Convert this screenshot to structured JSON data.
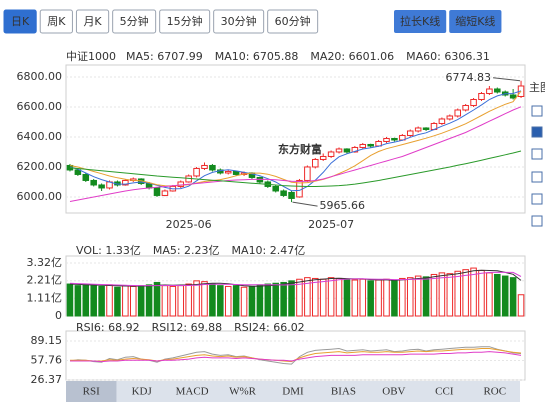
{
  "periods": [
    "日K",
    "周K",
    "月K",
    "5分钟",
    "15分钟",
    "30分钟",
    "60分钟"
  ],
  "buttons": [
    "拉长K线",
    "缩短K线"
  ],
  "side_label": "主图",
  "watermark": "东方财富",
  "indicator_tabs": [
    "RSI",
    "KDJ",
    "MACD",
    "W%R",
    "DMI",
    "BIAS",
    "OBV",
    "CCI",
    "ROC"
  ],
  "chart_data": [
    {
      "type": "candlestick",
      "title": "中证1000",
      "up_color": "#ee2a2a",
      "down_color": "#138a1e",
      "high_label": "6774.83",
      "low_label": "5965.66",
      "ylim": [
        5893,
        6880
      ],
      "yticks": [
        {
          "value": 6000,
          "label": "6000.00"
        },
        {
          "value": 6200,
          "label": "6200.00"
        },
        {
          "value": 6400,
          "label": "6400.00"
        },
        {
          "value": 6600,
          "label": "6600.00"
        },
        {
          "value": 6800,
          "label": "6800.00"
        }
      ],
      "grid": true,
      "categories": [
        null,
        null,
        null,
        null,
        null,
        null,
        null,
        null,
        null,
        null,
        null,
        null,
        null,
        null,
        null,
        "2025-06",
        null,
        null,
        null,
        null,
        null,
        null,
        null,
        null,
        null,
        null,
        null,
        null,
        null,
        null,
        null,
        null,
        null,
        "2025-07",
        null,
        null,
        null,
        null,
        null,
        null,
        null,
        null,
        null,
        null,
        null,
        null,
        null,
        null,
        null,
        null,
        null,
        null,
        null,
        null,
        null,
        null,
        null,
        null
      ],
      "ohlc": [
        [
          6210,
          6220,
          6170,
          6180
        ],
        [
          6180,
          6190,
          6140,
          6150
        ],
        [
          6150,
          6160,
          6100,
          6110
        ],
        [
          6110,
          6120,
          6070,
          6080
        ],
        [
          6080,
          6090,
          6040,
          6060
        ],
        [
          6060,
          6110,
          6050,
          6100
        ],
        [
          6100,
          6110,
          6070,
          6080
        ],
        [
          6080,
          6120,
          6075,
          6110
        ],
        [
          6110,
          6130,
          6100,
          6120
        ],
        [
          6120,
          6125,
          6080,
          6090
        ],
        [
          6090,
          6100,
          6050,
          6060
        ],
        [
          6060,
          6065,
          6000,
          6010
        ],
        [
          6010,
          6050,
          6005,
          6040
        ],
        [
          6040,
          6080,
          6035,
          6070
        ],
        [
          6070,
          6110,
          6060,
          6100
        ],
        [
          6100,
          6150,
          6095,
          6140
        ],
        [
          6140,
          6200,
          6130,
          6190
        ],
        [
          6190,
          6230,
          6180,
          6210
        ],
        [
          6210,
          6220,
          6170,
          6180
        ],
        [
          6180,
          6190,
          6150,
          6160
        ],
        [
          6160,
          6180,
          6150,
          6170
        ],
        [
          6170,
          6175,
          6140,
          6150
        ],
        [
          6150,
          6170,
          6140,
          6160
        ],
        [
          6160,
          6165,
          6120,
          6130
        ],
        [
          6130,
          6135,
          6090,
          6100
        ],
        [
          6100,
          6110,
          6060,
          6070
        ],
        [
          6070,
          6080,
          6030,
          6040
        ],
        [
          6040,
          6050,
          6000,
          6010
        ],
        [
          6030,
          6040,
          5965.66,
          5990
        ],
        [
          6000,
          6120,
          5995,
          6110
        ],
        [
          6110,
          6210,
          6100,
          6200
        ],
        [
          6200,
          6260,
          6190,
          6250
        ],
        [
          6250,
          6290,
          6240,
          6270
        ],
        [
          6270,
          6310,
          6260,
          6300
        ],
        [
          6300,
          6330,
          6290,
          6320
        ],
        [
          6320,
          6325,
          6290,
          6300
        ],
        [
          6300,
          6340,
          6295,
          6330
        ],
        [
          6330,
          6360,
          6320,
          6350
        ],
        [
          6350,
          6355,
          6330,
          6340
        ],
        [
          6340,
          6380,
          6335,
          6370
        ],
        [
          6370,
          6400,
          6360,
          6390
        ],
        [
          6390,
          6395,
          6370,
          6380
        ],
        [
          6380,
          6420,
          6375,
          6410
        ],
        [
          6410,
          6450,
          6400,
          6440
        ],
        [
          6440,
          6470,
          6430,
          6460
        ],
        [
          6460,
          6465,
          6440,
          6450
        ],
        [
          6450,
          6500,
          6445,
          6490
        ],
        [
          6490,
          6530,
          6480,
          6520
        ],
        [
          6520,
          6550,
          6510,
          6540
        ],
        [
          6540,
          6590,
          6530,
          6580
        ],
        [
          6580,
          6620,
          6570,
          6610
        ],
        [
          6610,
          6660,
          6600,
          6650
        ],
        [
          6650,
          6700,
          6640,
          6690
        ],
        [
          6690,
          6740,
          6680,
          6720
        ],
        [
          6720,
          6730,
          6690,
          6700
        ],
        [
          6700,
          6710,
          6670,
          6680
        ],
        [
          6680,
          6720,
          6650,
          6660
        ],
        [
          6670,
          6774.83,
          6660,
          6740
        ]
      ],
      "series": [
        {
          "name": "MA5: 6707.99",
          "color": "#3b6fd8",
          "values": [
            6200,
            6185,
            6160,
            6135,
            6116,
            6100,
            6086,
            6086,
            6094,
            6100,
            6092,
            6078,
            6064,
            6054,
            6056,
            6072,
            6108,
            6142,
            6164,
            6176,
            6182,
            6174,
            6164,
            6154,
            6142,
            6122,
            6100,
            6070,
            6042,
            6044,
            6070,
            6112,
            6164,
            6226,
            6268,
            6288,
            6304,
            6320,
            6328,
            6338,
            6356,
            6366,
            6378,
            6398,
            6416,
            6428,
            6450,
            6472,
            6492,
            6516,
            6548,
            6580,
            6614,
            6650,
            6674,
            6688,
            6690,
            6707.99
          ]
        },
        {
          "name": "MA10: 6705.88",
          "color": "#e8a030",
          "values": [
            6210,
            6200,
            6185,
            6170,
            6155,
            6140,
            6128,
            6118,
            6110,
            6108,
            6096,
            6082,
            6075,
            6074,
            6078,
            6082,
            6093,
            6103,
            6109,
            6116,
            6127,
            6141,
            6153,
            6159,
            6159,
            6152,
            6137,
            6117,
            6098,
            6093,
            6096,
            6106,
            6117,
            6134,
            6156,
            6179,
            6208,
            6242,
            6277,
            6303,
            6322,
            6335,
            6349,
            6363,
            6377,
            6392,
            6408,
            6425,
            6445,
            6466,
            6488,
            6515,
            6543,
            6571,
            6595,
            6618,
            6635,
            6705.88
          ]
        },
        {
          "name": "MA20: 6601.06",
          "color": "#e03cc8",
          "values": [
            5970,
            5980,
            5990,
            6000,
            6010,
            6020,
            6030,
            6040,
            6048,
            6055,
            6060,
            6065,
            6070,
            6075,
            6080,
            6085,
            6090,
            6095,
            6100,
            6105,
            6110,
            6113,
            6115,
            6117,
            6118,
            6117,
            6115,
            6110,
            6105,
            6103,
            6105,
            6110,
            6120,
            6135,
            6150,
            6165,
            6180,
            6195,
            6210,
            6225,
            6240,
            6255,
            6270,
            6290,
            6310,
            6330,
            6350,
            6370,
            6390,
            6410,
            6430,
            6455,
            6480,
            6505,
            6530,
            6555,
            6580,
            6601.06
          ]
        },
        {
          "name": "MA60: 6306.31",
          "color": "#2a9a2a",
          "values": [
            6195,
            6190,
            6185,
            6180,
            6175,
            6170,
            6165,
            6160,
            6155,
            6150,
            6145,
            6140,
            6136,
            6132,
            6128,
            6124,
            6120,
            6116,
            6112,
            6108,
            6104,
            6100,
            6096,
            6092,
            6088,
            6084,
            6080,
            6076,
            6073,
            6071,
            6070,
            6070,
            6071,
            6073,
            6076,
            6080,
            6086,
            6093,
            6101,
            6110,
            6120,
            6130,
            6140,
            6150,
            6160,
            6170,
            6180,
            6190,
            6200,
            6211,
            6222,
            6233,
            6245,
            6257,
            6269,
            6281,
            6293,
            6306.31
          ]
        }
      ]
    },
    {
      "type": "bar",
      "ylim": [
        0,
        3.63
      ],
      "yticks": [
        0,
        {
          "value": 1.11,
          "label": "1.11亿"
        },
        {
          "value": 2.21,
          "label": "2.21亿"
        },
        {
          "value": 3.32,
          "label": "3.32亿"
        }
      ],
      "grid": true,
      "series": [
        {
          "name": "VOL: 1.33亿",
          "color": "#d63fd6",
          "kind": "bar",
          "values": [
            2.0,
            1.9,
            1.95,
            1.9,
            1.85,
            1.95,
            1.8,
            1.9,
            1.85,
            1.9,
            1.95,
            2.1,
            1.9,
            1.85,
            1.9,
            2.0,
            2.2,
            2.15,
            2.0,
            1.9,
            1.85,
            1.9,
            1.8,
            1.85,
            1.95,
            2.0,
            2.05,
            2.1,
            2.2,
            2.3,
            2.4,
            2.35,
            2.3,
            2.4,
            2.35,
            2.3,
            2.25,
            2.3,
            2.2,
            2.25,
            2.3,
            2.2,
            2.35,
            2.4,
            2.5,
            2.45,
            2.6,
            2.7,
            2.65,
            2.8,
            2.9,
            3.0,
            2.85,
            2.7,
            2.6,
            2.5,
            2.4,
            1.33
          ]
        },
        {
          "name": "MA5: 2.23亿",
          "color": "#333333",
          "kind": "line",
          "values": [
            2.0,
            1.98,
            1.96,
            1.94,
            1.92,
            1.91,
            1.89,
            1.88,
            1.87,
            1.88,
            1.88,
            1.92,
            1.94,
            1.92,
            1.94,
            1.94,
            1.97,
            2.02,
            2.05,
            2.05,
            2.02,
            1.96,
            1.89,
            1.86,
            1.87,
            1.9,
            1.93,
            1.99,
            2.06,
            2.13,
            2.21,
            2.27,
            2.31,
            2.35,
            2.36,
            2.34,
            2.32,
            2.32,
            2.28,
            2.26,
            2.26,
            2.24,
            2.26,
            2.3,
            2.35,
            2.38,
            2.46,
            2.53,
            2.58,
            2.64,
            2.73,
            2.83,
            2.86,
            2.85,
            2.83,
            2.73,
            2.61,
            2.23
          ]
        },
        {
          "name": "MA10: 2.47亿",
          "color": "#d63fd6",
          "kind": "line",
          "values": [
            2.05,
            2.03,
            2.01,
            1.99,
            1.97,
            1.95,
            1.94,
            1.92,
            1.91,
            1.9,
            1.9,
            1.9,
            1.91,
            1.91,
            1.91,
            1.91,
            1.93,
            1.97,
            1.99,
            1.99,
            1.98,
            1.97,
            1.96,
            1.96,
            1.96,
            1.96,
            1.95,
            1.94,
            1.96,
            1.99,
            2.04,
            2.1,
            2.15,
            2.21,
            2.27,
            2.31,
            2.32,
            2.33,
            2.31,
            2.3,
            2.3,
            2.28,
            2.28,
            2.29,
            2.3,
            2.31,
            2.35,
            2.39,
            2.42,
            2.47,
            2.54,
            2.6,
            2.67,
            2.72,
            2.74,
            2.73,
            2.73,
            2.47
          ]
        }
      ]
    },
    {
      "type": "line",
      "ylim": [
        26.37,
        102
      ],
      "yticks": [
        26.37,
        57.76,
        89.15
      ],
      "grid": true,
      "series": [
        {
          "name": "RSI6: 68.92",
          "color": "#9a9a9a",
          "values": [
            57,
            59,
            58,
            56,
            55,
            61,
            59,
            63,
            64,
            60,
            58,
            55,
            60,
            62,
            65,
            68,
            71,
            72,
            68,
            66,
            67,
            64,
            65,
            62,
            59,
            57,
            55,
            53,
            52,
            64,
            71,
            74,
            75,
            76,
            77,
            73,
            74,
            75,
            73,
            74,
            75,
            72,
            73,
            75,
            76,
            73,
            75,
            76,
            77,
            78,
            79,
            79,
            80,
            80,
            76,
            73,
            70,
            68.92
          ]
        },
        {
          "name": "RSI12: 69.88",
          "color": "#e8a030",
          "values": [
            58,
            58,
            58,
            57,
            57,
            59,
            58,
            60,
            61,
            60,
            59,
            57,
            59,
            60,
            62,
            64,
            66,
            67,
            65,
            64,
            65,
            63,
            64,
            62,
            60,
            59,
            58,
            57,
            56,
            62,
            66,
            69,
            70,
            71,
            72,
            70,
            71,
            72,
            71,
            71,
            72,
            71,
            71,
            72,
            73,
            72,
            73,
            73,
            74,
            75,
            76,
            76,
            77,
            77,
            75,
            73,
            71,
            69.88
          ]
        },
        {
          "name": "RSI24: 66.02",
          "color": "#e03cc8",
          "values": [
            57,
            57,
            57,
            57,
            56,
            57,
            57,
            58,
            58,
            58,
            58,
            57,
            58,
            58,
            59,
            60,
            62,
            63,
            62,
            62,
            62,
            61,
            62,
            61,
            60,
            59,
            58,
            58,
            57,
            60,
            62,
            64,
            65,
            66,
            66,
            66,
            66,
            67,
            67,
            67,
            67,
            67,
            67,
            68,
            68,
            68,
            68,
            69,
            69,
            70,
            70,
            71,
            71,
            72,
            71,
            70,
            68,
            66.02
          ]
        }
      ]
    }
  ]
}
